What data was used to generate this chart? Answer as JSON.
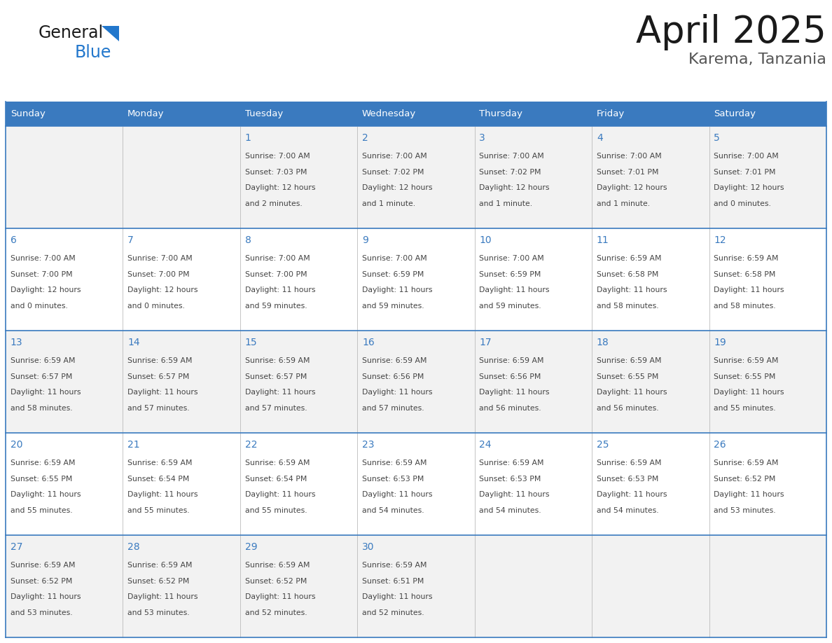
{
  "title": "April 2025",
  "subtitle": "Karema, Tanzania",
  "days_of_week": [
    "Sunday",
    "Monday",
    "Tuesday",
    "Wednesday",
    "Thursday",
    "Friday",
    "Saturday"
  ],
  "header_bg": "#3a7abf",
  "header_text_color": "#ffffff",
  "cell_bg_odd": "#f2f2f2",
  "cell_bg_even": "#ffffff",
  "border_color": "#3a7abf",
  "day_number_color": "#3a7abf",
  "text_color": "#444444",
  "logo_general_color": "#1a1a1a",
  "logo_blue_color": "#2277cc",
  "title_color": "#1a1a1a",
  "subtitle_color": "#555555",
  "calendar_data": {
    "1": {
      "sunrise": "7:00 AM",
      "sunset": "7:03 PM",
      "daylight": "12 hours and 2 minutes."
    },
    "2": {
      "sunrise": "7:00 AM",
      "sunset": "7:02 PM",
      "daylight": "12 hours and 1 minute."
    },
    "3": {
      "sunrise": "7:00 AM",
      "sunset": "7:02 PM",
      "daylight": "12 hours and 1 minute."
    },
    "4": {
      "sunrise": "7:00 AM",
      "sunset": "7:01 PM",
      "daylight": "12 hours and 1 minute."
    },
    "5": {
      "sunrise": "7:00 AM",
      "sunset": "7:01 PM",
      "daylight": "12 hours and 0 minutes."
    },
    "6": {
      "sunrise": "7:00 AM",
      "sunset": "7:00 PM",
      "daylight": "12 hours and 0 minutes."
    },
    "7": {
      "sunrise": "7:00 AM",
      "sunset": "7:00 PM",
      "daylight": "12 hours and 0 minutes."
    },
    "8": {
      "sunrise": "7:00 AM",
      "sunset": "7:00 PM",
      "daylight": "11 hours and 59 minutes."
    },
    "9": {
      "sunrise": "7:00 AM",
      "sunset": "6:59 PM",
      "daylight": "11 hours and 59 minutes."
    },
    "10": {
      "sunrise": "7:00 AM",
      "sunset": "6:59 PM",
      "daylight": "11 hours and 59 minutes."
    },
    "11": {
      "sunrise": "6:59 AM",
      "sunset": "6:58 PM",
      "daylight": "11 hours and 58 minutes."
    },
    "12": {
      "sunrise": "6:59 AM",
      "sunset": "6:58 PM",
      "daylight": "11 hours and 58 minutes."
    },
    "13": {
      "sunrise": "6:59 AM",
      "sunset": "6:57 PM",
      "daylight": "11 hours and 58 minutes."
    },
    "14": {
      "sunrise": "6:59 AM",
      "sunset": "6:57 PM",
      "daylight": "11 hours and 57 minutes."
    },
    "15": {
      "sunrise": "6:59 AM",
      "sunset": "6:57 PM",
      "daylight": "11 hours and 57 minutes."
    },
    "16": {
      "sunrise": "6:59 AM",
      "sunset": "6:56 PM",
      "daylight": "11 hours and 57 minutes."
    },
    "17": {
      "sunrise": "6:59 AM",
      "sunset": "6:56 PM",
      "daylight": "11 hours and 56 minutes."
    },
    "18": {
      "sunrise": "6:59 AM",
      "sunset": "6:55 PM",
      "daylight": "11 hours and 56 minutes."
    },
    "19": {
      "sunrise": "6:59 AM",
      "sunset": "6:55 PM",
      "daylight": "11 hours and 55 minutes."
    },
    "20": {
      "sunrise": "6:59 AM",
      "sunset": "6:55 PM",
      "daylight": "11 hours and 55 minutes."
    },
    "21": {
      "sunrise": "6:59 AM",
      "sunset": "6:54 PM",
      "daylight": "11 hours and 55 minutes."
    },
    "22": {
      "sunrise": "6:59 AM",
      "sunset": "6:54 PM",
      "daylight": "11 hours and 55 minutes."
    },
    "23": {
      "sunrise": "6:59 AM",
      "sunset": "6:53 PM",
      "daylight": "11 hours and 54 minutes."
    },
    "24": {
      "sunrise": "6:59 AM",
      "sunset": "6:53 PM",
      "daylight": "11 hours and 54 minutes."
    },
    "25": {
      "sunrise": "6:59 AM",
      "sunset": "6:53 PM",
      "daylight": "11 hours and 54 minutes."
    },
    "26": {
      "sunrise": "6:59 AM",
      "sunset": "6:52 PM",
      "daylight": "11 hours and 53 minutes."
    },
    "27": {
      "sunrise": "6:59 AM",
      "sunset": "6:52 PM",
      "daylight": "11 hours and 53 minutes."
    },
    "28": {
      "sunrise": "6:59 AM",
      "sunset": "6:52 PM",
      "daylight": "11 hours and 53 minutes."
    },
    "29": {
      "sunrise": "6:59 AM",
      "sunset": "6:52 PM",
      "daylight": "11 hours and 52 minutes."
    },
    "30": {
      "sunrise": "6:59 AM",
      "sunset": "6:51 PM",
      "daylight": "11 hours and 52 minutes."
    }
  },
  "week_rows": [
    [
      null,
      null,
      1,
      2,
      3,
      4,
      5
    ],
    [
      6,
      7,
      8,
      9,
      10,
      11,
      12
    ],
    [
      13,
      14,
      15,
      16,
      17,
      18,
      19
    ],
    [
      20,
      21,
      22,
      23,
      24,
      25,
      26
    ],
    [
      27,
      28,
      29,
      30,
      null,
      null,
      null
    ]
  ]
}
